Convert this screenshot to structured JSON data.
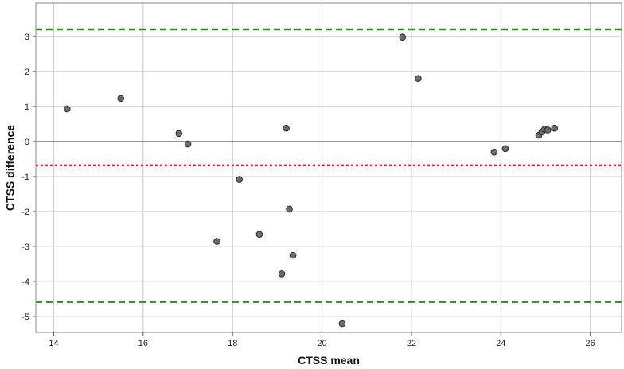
{
  "chart_data": {
    "type": "scatter",
    "title": "",
    "xlabel": "CTSS mean",
    "ylabel": "CTSS difference",
    "xlim": [
      13.6,
      26.7
    ],
    "ylim": [
      -5.45,
      3.95
    ],
    "x_ticks": [
      14,
      16,
      18,
      20,
      22,
      24,
      26
    ],
    "y_ticks": [
      -5,
      -4,
      -3,
      -2,
      -1,
      0,
      1,
      2,
      3
    ],
    "grid": true,
    "points": [
      {
        "x": 14.3,
        "y": 0.93
      },
      {
        "x": 15.5,
        "y": 1.23
      },
      {
        "x": 16.8,
        "y": 0.23
      },
      {
        "x": 17.0,
        "y": -0.07
      },
      {
        "x": 17.65,
        "y": -2.85
      },
      {
        "x": 18.15,
        "y": -1.08
      },
      {
        "x": 18.6,
        "y": -2.65
      },
      {
        "x": 19.1,
        "y": -3.78
      },
      {
        "x": 19.2,
        "y": 0.38
      },
      {
        "x": 19.27,
        "y": -1.93
      },
      {
        "x": 19.35,
        "y": -3.25
      },
      {
        "x": 20.45,
        "y": -5.2
      },
      {
        "x": 21.8,
        "y": 2.98
      },
      {
        "x": 22.15,
        "y": 1.8
      },
      {
        "x": 23.85,
        "y": -0.3
      },
      {
        "x": 24.1,
        "y": -0.2
      },
      {
        "x": 24.85,
        "y": 0.18
      },
      {
        "x": 24.92,
        "y": 0.28
      },
      {
        "x": 24.98,
        "y": 0.35
      },
      {
        "x": 25.05,
        "y": 0.33
      },
      {
        "x": 25.2,
        "y": 0.38
      }
    ],
    "reference_lines": [
      {
        "y": 0,
        "color": "#555555",
        "style": "solid"
      },
      {
        "y": -0.68,
        "color": "#e8173b",
        "style": "dotted"
      },
      {
        "y": 3.2,
        "color": "#2e8b1f",
        "style": "dashed"
      },
      {
        "y": -4.58,
        "color": "#2e8b1f",
        "style": "dashed"
      }
    ],
    "colors": {
      "point_fill": "#6b6b6b",
      "point_stroke": "#2b2b2b",
      "grid": "#c8c8c8",
      "frame": "#8a8a8a"
    }
  }
}
